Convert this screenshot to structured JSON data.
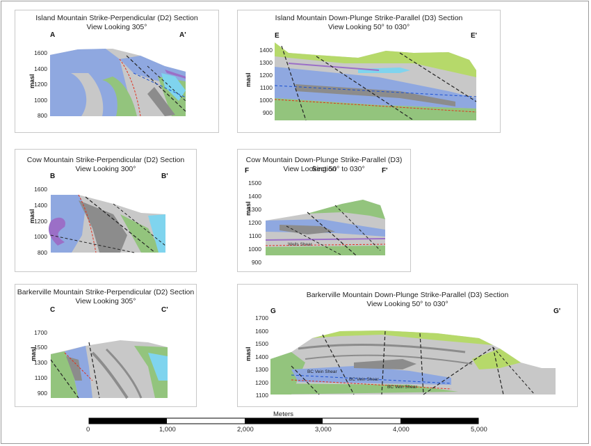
{
  "colors": {
    "blue": "#8fa8e0",
    "gray_light": "#c8c8c8",
    "gray_dark": "#8c8c8c",
    "green_dark": "#93c47d",
    "green_light": "#b6d96a",
    "cyan": "#7fd4ee",
    "purple": "#9b6fc7",
    "red_line": "#e0301e",
    "blue_line": "#1a4fd0"
  },
  "panels": {
    "a": {
      "title_line1": "Island Mountain Strike-Perpendicular (D2) Section",
      "title_line2": "View Looking 305°",
      "left_label": "A",
      "right_label": "A'",
      "axis_label": "masl",
      "ticks": [
        "1600",
        "1400",
        "1200",
        "1000",
        "800"
      ]
    },
    "e": {
      "title_line1": "Island Mountain Down-Plunge Strike-Parallel (D3) Section",
      "title_line2": "View Looking 50° to 030°",
      "left_label": "E",
      "right_label": "E'",
      "axis_label": "masl",
      "ticks": [
        "1400",
        "1300",
        "1200",
        "1100",
        "1000",
        "900"
      ]
    },
    "b": {
      "title_line1": "Cow Mountain Strike-Perpendicular (D2) Section",
      "title_line2": "View Looking 300°",
      "left_label": "B",
      "right_label": "B'",
      "axis_label": "masl",
      "ticks": [
        "1600",
        "1400",
        "1200",
        "1000",
        "800"
      ]
    },
    "f": {
      "title_line1": "Cow Mountain Down-Plunge Strike-Parallel (D3) Section",
      "title_line2": "View Looking 50° to 030°",
      "left_label": "F",
      "right_label": "F'",
      "axis_label": "masl",
      "ticks": [
        "1500",
        "1400",
        "1300",
        "1200",
        "1100",
        "1000",
        "900"
      ],
      "annotation": "Wells Shear"
    },
    "c": {
      "title_line1": "Barkerville Mountain Strike-Perpendicular (D2) Section",
      "title_line2": "View Looking 305°",
      "left_label": "C",
      "right_label": "C'",
      "axis_label": "masl",
      "ticks": [
        "1700",
        "1500",
        "1300",
        "1100",
        "900"
      ]
    },
    "g": {
      "title_line1": "Barkerville Mountain Down-Plunge Strike-Parallel (D3) Section",
      "title_line2": "View Looking 50° to 030°",
      "left_label": "G",
      "right_label": "G'",
      "axis_label": "masl",
      "ticks": [
        "1700",
        "1600",
        "1500",
        "1400",
        "1300",
        "1200",
        "1100"
      ],
      "annotations": [
        "BC Vein Shear",
        "BC Vein Shear",
        "BC Vein Shear"
      ]
    }
  },
  "scale": {
    "title": "Meters",
    "labels": [
      "0",
      "1,000",
      "2,000",
      "3,000",
      "4,000",
      "5,000"
    ]
  }
}
